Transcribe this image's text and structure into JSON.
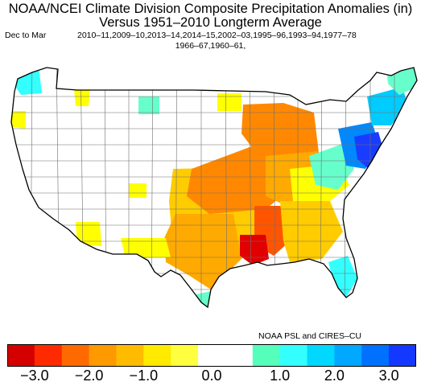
{
  "title": {
    "line1": "NOAA/NCEI Climate Division Composite Precipitation Anomalies (in)",
    "line2": "Versus 1951–2010 Longterm Average",
    "period": "Dec to Mar",
    "years_line1": "2010–11,2009–10,2013–14,2014–15,2002–03,1995–96,1993–94,1977–78",
    "years_line2": "1966–67,1960–61,"
  },
  "credit": "NOAA PSL and CIRES–CU",
  "colorbar": {
    "colors": [
      "#d40000",
      "#ff2a00",
      "#ff6a00",
      "#ff9900",
      "#ffbb00",
      "#ffea00",
      "#ffff40",
      "#ffffff",
      "#ffffff",
      "#55ffbb",
      "#33ffff",
      "#00d8ff",
      "#00a8ff",
      "#0070ff",
      "#1438ff"
    ],
    "tick_labels": [
      "−3.0",
      "−2.0",
      "−1.0",
      "0.0",
      "1.0",
      "2.0",
      "3.0"
    ]
  },
  "map": {
    "fill_colors": {
      "yellow": "#ffff00",
      "light_orange": "#ffcc00",
      "orange": "#ffaa00",
      "dark_orange": "#ff8800",
      "red_orange": "#ff5500",
      "red": "#e00000",
      "cyan": "#33ffff",
      "light_cyan": "#66ffcc",
      "sky": "#00ccff",
      "blue": "#0088ff",
      "deep_blue": "#1a3cff",
      "none": "#ffffff"
    },
    "anomaly_areas": [
      {
        "region": "pacific-northwest-coast",
        "category": "cyan"
      },
      {
        "region": "north-idaho",
        "category": "yellow"
      },
      {
        "region": "oregon-east",
        "category": "yellow"
      },
      {
        "region": "montana-east",
        "category": "light_cyan"
      },
      {
        "region": "north-dakota-east",
        "category": "yellow"
      },
      {
        "region": "southern-plains",
        "category": "light_orange"
      },
      {
        "region": "texas",
        "category": "orange"
      },
      {
        "region": "central-plains",
        "category": "dark_orange"
      },
      {
        "region": "ohio-valley",
        "category": "orange"
      },
      {
        "region": "great-lakes",
        "category": "dark_orange"
      },
      {
        "region": "mississippi-delta",
        "category": "red_orange"
      },
      {
        "region": "lower-mississippi",
        "category": "red"
      },
      {
        "region": "southeast",
        "category": "light_orange"
      },
      {
        "region": "carolinas",
        "category": "yellow"
      },
      {
        "region": "florida",
        "category": "cyan"
      },
      {
        "region": "appalachia",
        "category": "light_cyan"
      },
      {
        "region": "mid-atlantic",
        "category": "blue"
      },
      {
        "region": "chesapeake",
        "category": "deep_blue"
      },
      {
        "region": "new-england",
        "category": "sky"
      },
      {
        "region": "maine",
        "category": "light_cyan"
      },
      {
        "region": "arizona-south",
        "category": "yellow"
      },
      {
        "region": "new-mexico-south",
        "category": "yellow"
      },
      {
        "region": "colorado",
        "category": "yellow"
      },
      {
        "region": "south-texas-coast",
        "category": "light_cyan"
      }
    ]
  }
}
